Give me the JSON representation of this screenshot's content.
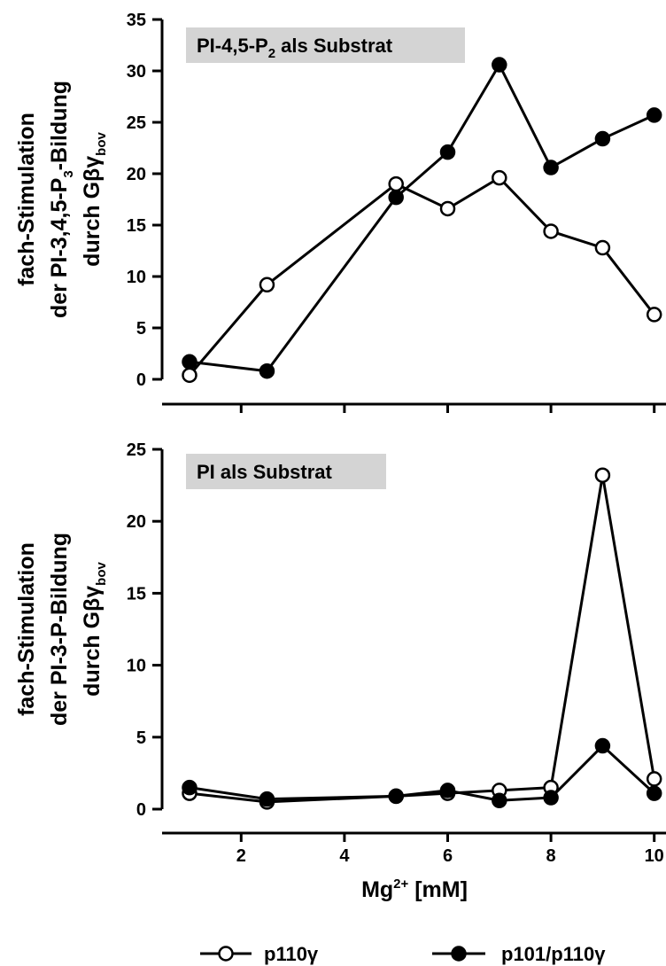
{
  "chart_data": [
    {
      "type": "line",
      "annotation": "PI-4,5-P",
      "annotation_sub": "2",
      "annotation_rest": " als Substrat",
      "ylabel_lines": [
        {
          "text": "fach-Stimulation",
          "sub": "",
          "after": ""
        },
        {
          "text": "der PI-3,4,5-P",
          "sub": "3",
          "after": "-Bildung"
        },
        {
          "text": "durch Gβγ",
          "sub": "bov",
          "after": ""
        }
      ],
      "ylim": [
        0,
        35
      ],
      "yticks": [
        0,
        5,
        10,
        15,
        20,
        25,
        30,
        35
      ],
      "series": [
        {
          "name": "p110γ",
          "marker": "open",
          "x": [
            1,
            2.5,
            5,
            6,
            7,
            8,
            9,
            10
          ],
          "y": [
            0.4,
            9.2,
            19.0,
            16.6,
            19.6,
            14.4,
            12.8,
            6.3
          ]
        },
        {
          "name": "p101/p110γ",
          "marker": "filled",
          "x": [
            1,
            2.5,
            5,
            6,
            7,
            8,
            9,
            10
          ],
          "y": [
            1.7,
            0.8,
            17.7,
            22.1,
            30.6,
            20.6,
            23.4,
            25.7
          ]
        }
      ]
    },
    {
      "type": "line",
      "annotation": "PI als Substrat",
      "annotation_sub": "",
      "annotation_rest": "",
      "ylabel_lines": [
        {
          "text": "fach-Stimulation",
          "sub": "",
          "after": ""
        },
        {
          "text": "der PI-3-P-Bildung",
          "sub": "",
          "after": ""
        },
        {
          "text": "durch Gβγ",
          "sub": "bov",
          "after": ""
        }
      ],
      "ylim": [
        0,
        25
      ],
      "yticks": [
        0,
        5,
        10,
        15,
        20,
        25
      ],
      "series": [
        {
          "name": "p110γ",
          "marker": "open",
          "x": [
            1,
            2.5,
            5,
            6,
            7,
            8,
            9,
            10
          ],
          "y": [
            1.1,
            0.5,
            0.9,
            1.1,
            1.3,
            1.5,
            23.2,
            2.1
          ]
        },
        {
          "name": "p101/p110γ",
          "marker": "filled",
          "x": [
            1,
            2.5,
            5,
            6,
            7,
            8,
            9,
            10
          ],
          "y": [
            1.5,
            0.7,
            0.9,
            1.3,
            0.6,
            0.8,
            4.4,
            1.1
          ]
        }
      ]
    }
  ],
  "x_axis": {
    "label": "Mg",
    "label_sup": "2+",
    "label_rest": " [mM]",
    "ticks": [
      2,
      4,
      6,
      8,
      10
    ],
    "range": [
      0.5,
      10
    ]
  },
  "legend": {
    "position": "bottom",
    "items": [
      {
        "label": "p110γ",
        "marker": "open"
      },
      {
        "label": "p101/p110γ",
        "marker": "filled"
      }
    ]
  },
  "colors": {
    "line": "#000000",
    "annotation_bg": "#d4d4d4",
    "background": "#ffffff"
  }
}
